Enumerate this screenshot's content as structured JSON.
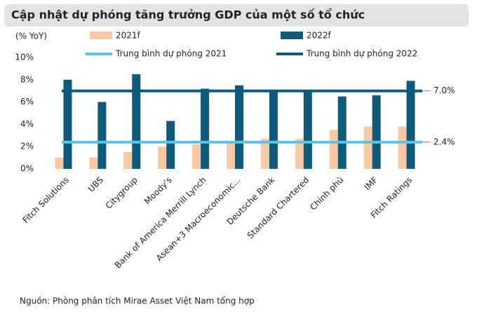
{
  "chart_data": {
    "type": "bar",
    "title": "Cập nhật dự phóng tăng trưởng GDP của một số tổ chức",
    "y_label": "(% YoY)",
    "source": "Nguồn: Phòng phân tích Mirae Asset Việt Nam tổng hợp",
    "categories": [
      "Fitch Solutions",
      "UBS",
      "Citygroup",
      "Moody's",
      "Bank of America Merrill Lynch",
      "Asean+3 Macroeconomic...",
      "Deutsche Bank",
      "Standard Chartered",
      "Chính phủ",
      "IMF",
      "Fitch Ratings"
    ],
    "series": [
      {
        "name": "2021f",
        "color": "#f9c9a3",
        "values": [
          1.0,
          1.0,
          1.5,
          2.0,
          2.2,
          2.5,
          2.7,
          2.7,
          3.5,
          3.8,
          3.8
        ]
      },
      {
        "name": "2022f",
        "color": "#0e5a7a",
        "values": [
          8.0,
          6.0,
          8.5,
          4.3,
          7.2,
          7.5,
          7.0,
          7.0,
          6.5,
          6.6,
          7.9
        ]
      }
    ],
    "average_lines": [
      {
        "name": "Trung bình dự phóng 2021",
        "color": "#5bc3e6",
        "value": 2.4,
        "value_label": "2.4%"
      },
      {
        "name": "Trung bình dự phóng 2022",
        "color": "#0e5a7a",
        "value": 7.0,
        "value_label": "7.0%"
      }
    ],
    "ylim": [
      0,
      10
    ],
    "yticks": [
      {
        "value": 0,
        "label": "0%"
      },
      {
        "value": 2,
        "label": "2%"
      },
      {
        "value": 4,
        "label": "4%"
      },
      {
        "value": 6,
        "label": "6%"
      },
      {
        "value": 8,
        "label": "8%"
      },
      {
        "value": 10,
        "label": "10%"
      }
    ]
  }
}
